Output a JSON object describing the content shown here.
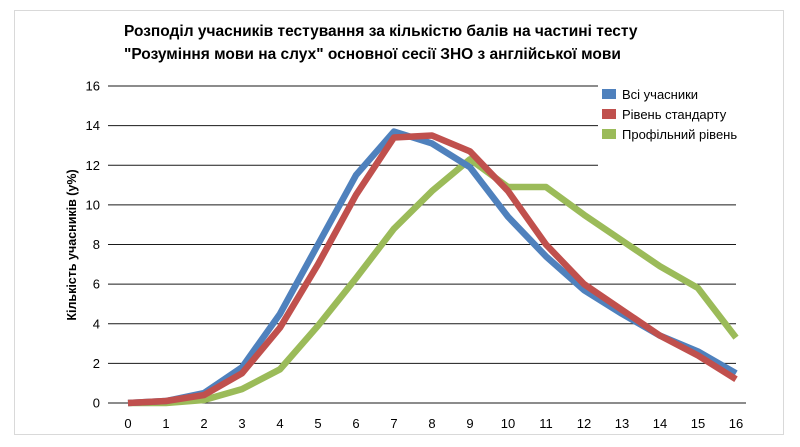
{
  "chart_data": {
    "type": "line",
    "title_line1": "Розподіл учасників тестування за кількістю балів на частині тесту",
    "title_line2": "\"Розуміння мови на слух\" основної сесії ЗНО з англійської мови",
    "xlabel": "",
    "ylabel": "Кількість учасників (у%)",
    "x": [
      0,
      1,
      2,
      3,
      4,
      5,
      6,
      7,
      8,
      9,
      10,
      11,
      12,
      13,
      14,
      15,
      16
    ],
    "xlim": [
      0,
      16
    ],
    "ylim": [
      0,
      16
    ],
    "yticks": [
      0,
      2,
      4,
      6,
      8,
      10,
      12,
      14,
      16
    ],
    "grid": "horizontal",
    "legend_position": "top-right",
    "series": [
      {
        "name": "Всі учасники",
        "color": "#4f81bd",
        "values": [
          0,
          0.1,
          0.5,
          1.8,
          4.5,
          8,
          11.5,
          13.7,
          13.1,
          11.9,
          9.4,
          7.4,
          5.7,
          4.5,
          3.4,
          2.6,
          1.5
        ]
      },
      {
        "name": "Рівень стандарту",
        "color": "#c0504d",
        "values": [
          0,
          0.1,
          0.4,
          1.5,
          3.8,
          7,
          10.5,
          13.4,
          13.5,
          12.7,
          10.7,
          8.0,
          6.0,
          4.7,
          3.4,
          2.4,
          1.2
        ]
      },
      {
        "name": "Профільний рівень",
        "color": "#9bbb59",
        "values": [
          0,
          0,
          0.15,
          0.7,
          1.7,
          3.9,
          6.3,
          8.8,
          10.7,
          12.3,
          10.9,
          10.9,
          9.5,
          8.2,
          6.9,
          5.8,
          3.3
        ]
      }
    ]
  }
}
